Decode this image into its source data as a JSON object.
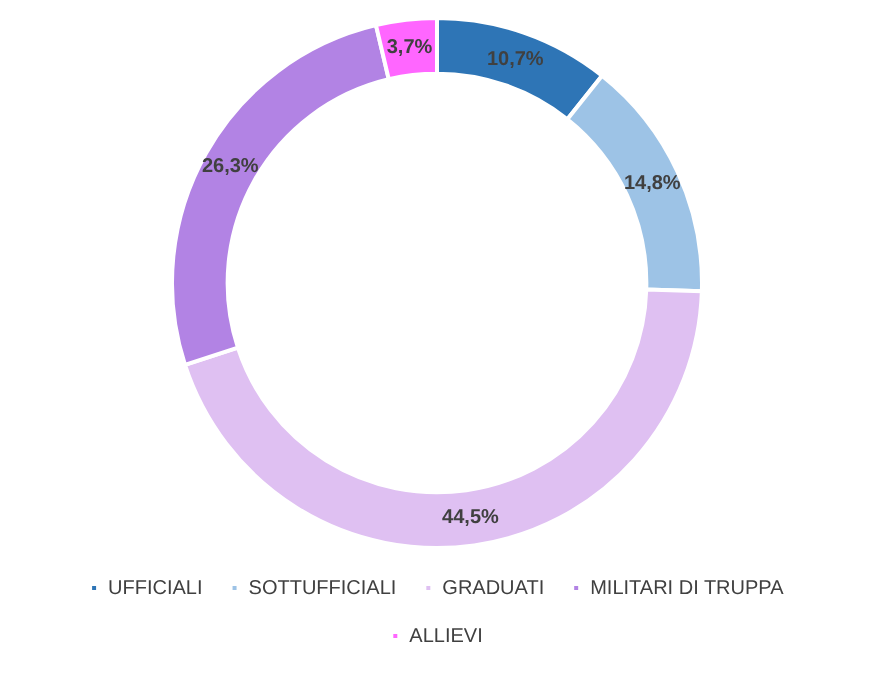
{
  "chart_data": {
    "type": "donut",
    "categories": [
      "UFFICIALI",
      "SOTTUFFICIALI",
      "GRADUATI",
      "MILITARI DI TRUPPA",
      "ALLIEVI"
    ],
    "values": [
      10.7,
      14.8,
      44.5,
      26.3,
      3.7
    ],
    "colors": [
      "#2e75b6",
      "#9dc3e6",
      "#dfc0f2",
      "#b283e4",
      "#ff66ff"
    ],
    "value_labels": [
      "10,7%",
      "14,8%",
      "44,5%",
      "26,3%",
      "3,7%"
    ],
    "legend": "bottom"
  }
}
